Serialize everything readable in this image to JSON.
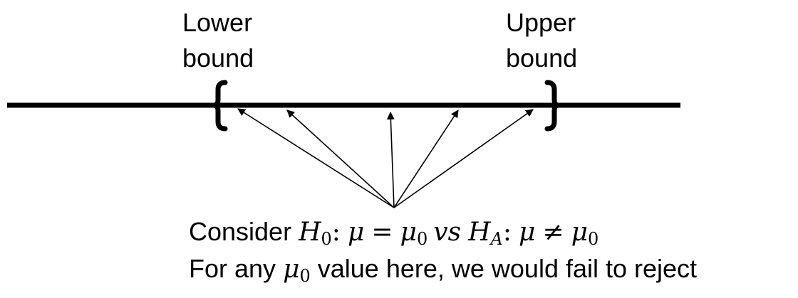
{
  "labels": {
    "lower": [
      "Lower",
      "bound"
    ],
    "upper": [
      "Upper",
      "bound"
    ]
  },
  "caption": {
    "line1_text": "Consider",
    "line1_math": {
      "h0": "H",
      "h0_sub": "0",
      "colon": ":",
      "mu": "μ",
      "eq": "=",
      "mu0": "μ",
      "mu0_sub": "0",
      "vs": "vs",
      "ha": "H",
      "ha_sub": "A",
      "colon2": ":",
      "mu2": "μ",
      "neq": "≠",
      "mu0b": "μ",
      "mu0b_sub": "0"
    },
    "line2_before": "For any",
    "line2_mu": "μ",
    "line2_mu_sub": "0",
    "line2_after": "value here, we would fail to reject"
  },
  "colors": {
    "line": "#000000",
    "background": "#ffffff"
  }
}
